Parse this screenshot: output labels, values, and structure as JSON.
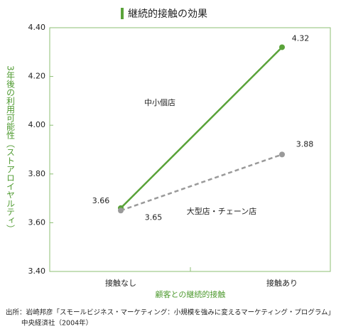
{
  "chart_data": {
    "type": "line",
    "title": "継続的接触の効果",
    "x_label": "顧客との継続的接触",
    "y_label": "3年後の利用可能性（ストアロイヤルティ）",
    "categories": [
      "接触なし",
      "接触あり"
    ],
    "series": [
      {
        "name": "中小個店",
        "color": "#5aa33a",
        "style": "solid",
        "values": [
          3.66,
          4.32
        ]
      },
      {
        "name": "大型店・チェーン店",
        "color": "#9a9a9a",
        "style": "dashed",
        "values": [
          3.65,
          3.88
        ]
      }
    ],
    "ylim": [
      3.4,
      4.4
    ],
    "yticks": [
      {
        "value": 3.4,
        "label": "3.40"
      },
      {
        "value": 3.6,
        "label": "3.60"
      },
      {
        "value": 3.8,
        "label": "3.80"
      },
      {
        "value": 4.0,
        "label": "4.00"
      },
      {
        "value": 4.2,
        "label": "4.20"
      },
      {
        "value": 4.4,
        "label": "4.40"
      }
    ],
    "source": [
      "出所：岩崎邦彦「スモールビジネス・マーケティング：小規模を強みに変えるマーケティング・プログラム」",
      "中央経済社（2004年）"
    ]
  }
}
